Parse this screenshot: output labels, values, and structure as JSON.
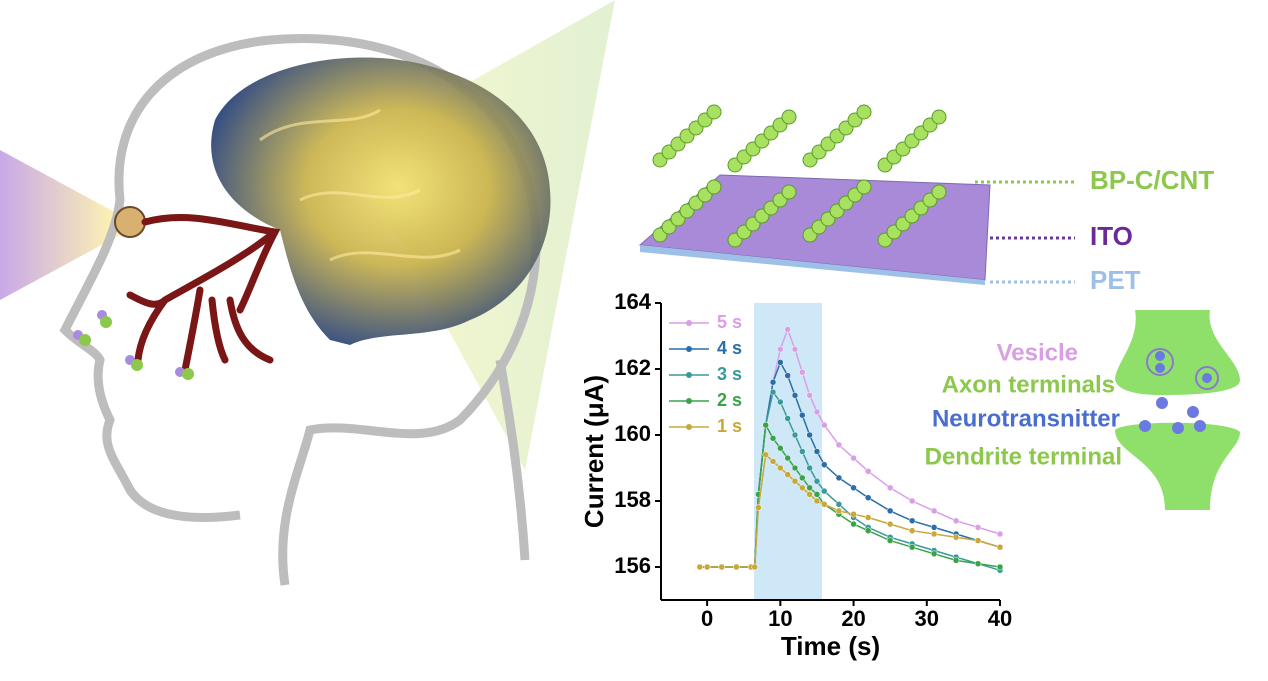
{
  "device": {
    "labels": [
      "BP-C/CNT",
      "ITO",
      "PET"
    ]
  },
  "synapse": {
    "labels": [
      "Vesicle",
      "Axon terminals",
      "Neurotransnitter",
      "Dendrite terminal"
    ]
  },
  "chart_data": {
    "type": "line",
    "x_label": "Time (s)",
    "y_label": "Current (μA)",
    "xlim": [
      -6.3,
      40
    ],
    "ylim": [
      155,
      164
    ],
    "xticks": [
      0,
      10,
      20,
      30,
      40
    ],
    "yticks": [
      156,
      158,
      160,
      162,
      164
    ],
    "shaded_x": [
      6.4,
      15.7
    ],
    "shaded_color": "#cfe8f8",
    "legend": "upper left",
    "x": [
      -1,
      0,
      2,
      4,
      6,
      6.5,
      7,
      8,
      9,
      10,
      11,
      12,
      13,
      14,
      15,
      16,
      18,
      20,
      22,
      25,
      28,
      31,
      34,
      37,
      40
    ],
    "series": [
      {
        "name": "5 s",
        "color": "#d99ee6",
        "values": [
          156.0,
          156.0,
          156.0,
          156.0,
          156.0,
          156.0,
          158.2,
          160.3,
          161.6,
          162.6,
          163.2,
          162.6,
          161.9,
          161.2,
          160.7,
          160.3,
          159.7,
          159.3,
          158.9,
          158.4,
          158.0,
          157.7,
          157.4,
          157.2,
          157.0
        ]
      },
      {
        "name": "4 s",
        "color": "#2a6fa8",
        "values": [
          156.0,
          156.0,
          156.0,
          156.0,
          156.0,
          156.0,
          158.2,
          160.3,
          161.6,
          162.2,
          161.8,
          161.2,
          160.6,
          160.0,
          159.5,
          159.1,
          158.7,
          158.4,
          158.1,
          157.7,
          157.4,
          157.2,
          157.0,
          156.8,
          156.6
        ]
      },
      {
        "name": "3 s",
        "color": "#3a9a9a",
        "values": [
          156.0,
          156.0,
          156.0,
          156.0,
          156.0,
          156.0,
          158.2,
          160.3,
          161.3,
          161.0,
          160.5,
          160.0,
          159.5,
          159.0,
          158.6,
          158.3,
          157.9,
          157.5,
          157.2,
          156.9,
          156.7,
          156.5,
          156.3,
          156.1,
          155.9
        ]
      },
      {
        "name": "2 s",
        "color": "#3aa34a",
        "values": [
          156.0,
          156.0,
          156.0,
          156.0,
          156.0,
          156.0,
          158.2,
          160.3,
          159.9,
          159.6,
          159.3,
          159.0,
          158.7,
          158.4,
          158.2,
          157.9,
          157.6,
          157.3,
          157.1,
          156.8,
          156.6,
          156.4,
          156.2,
          156.1,
          156.0
        ]
      },
      {
        "name": "1 s",
        "color": "#c8a838",
        "values": [
          156.0,
          156.0,
          156.0,
          156.0,
          156.0,
          156.0,
          157.8,
          159.4,
          159.2,
          159.0,
          158.8,
          158.6,
          158.4,
          158.2,
          158.0,
          157.9,
          157.7,
          157.6,
          157.5,
          157.3,
          157.1,
          157.0,
          156.9,
          156.8,
          156.6
        ]
      }
    ]
  }
}
